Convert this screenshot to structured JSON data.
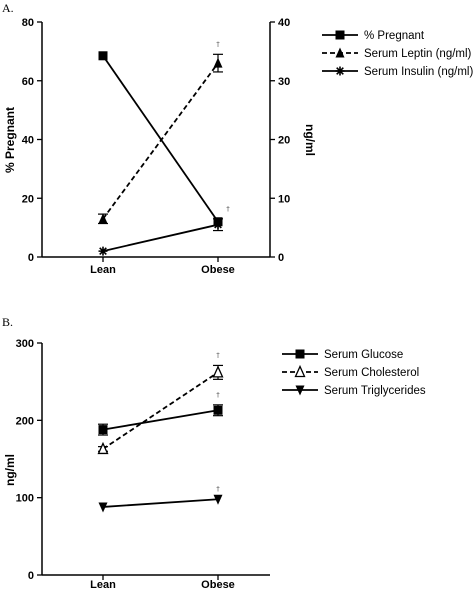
{
  "chart_data": [
    {
      "panel": "A.",
      "type": "line",
      "categories": [
        "Lean",
        "Obese"
      ],
      "ylabel": "% Pregnant",
      "y2label": "ng/ml",
      "ylim": [
        0,
        80
      ],
      "y2lim": [
        0,
        40
      ],
      "yticks": [
        "0",
        "20",
        "40",
        "60",
        "80"
      ],
      "y2ticks": [
        "0",
        "10",
        "20",
        "30",
        "40"
      ],
      "legend_placement": "right",
      "grid": false,
      "series": [
        {
          "name": "% Pregnant",
          "axis": "left",
          "values": [
            68.5,
            12.0
          ],
          "errors": [
            0,
            0
          ],
          "marker": "square",
          "line": "solid",
          "sig": [
            "",
            ""
          ]
        },
        {
          "name": "Serum Leptin (ng/ml)",
          "axis": "right",
          "values": [
            6.5,
            33.0
          ],
          "errors": [
            0.8,
            1.5
          ],
          "marker": "triangle",
          "line": "dashed",
          "sig": [
            "",
            "†"
          ]
        },
        {
          "name": "Serum Insulin (ng/ml)",
          "axis": "right",
          "values": [
            1.0,
            5.5
          ],
          "errors": [
            0,
            1.0
          ],
          "marker": "asterisk",
          "line": "solid",
          "sig": [
            "",
            "†"
          ]
        }
      ]
    },
    {
      "panel": "B.",
      "type": "line",
      "categories": [
        "Lean",
        "Obese"
      ],
      "ylabel": "ng/ml",
      "ylim": [
        0,
        300
      ],
      "yticks": [
        "0",
        "100",
        "200",
        "300"
      ],
      "legend_placement": "right",
      "grid": false,
      "series": [
        {
          "name": "Serum Glucose",
          "values": [
            188,
            213
          ],
          "errors": [
            7,
            7
          ],
          "marker": "square",
          "line": "solid",
          "sig": [
            "",
            "†"
          ]
        },
        {
          "name": "Serum Cholesterol",
          "values": [
            163,
            262
          ],
          "errors": [
            3,
            9
          ],
          "marker": "triangle-open",
          "line": "dashed",
          "sig": [
            "",
            "†"
          ]
        },
        {
          "name": "Serum Triglycerides",
          "values": [
            88,
            98
          ],
          "errors": [
            0,
            0
          ],
          "marker": "triangle-down",
          "line": "solid",
          "sig": [
            "",
            "†"
          ]
        }
      ]
    }
  ]
}
